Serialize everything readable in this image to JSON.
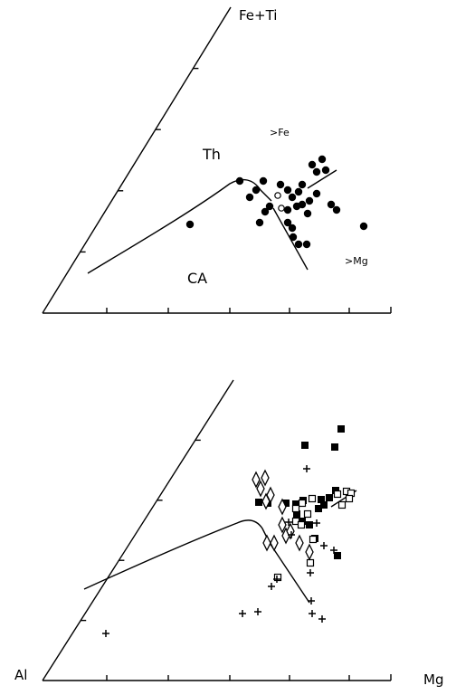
{
  "chart_data": [
    {
      "type": "scatter",
      "diagram": "Jensen cation ternary",
      "vertex_labels": {
        "apex": "Fe+Ti",
        "left": "Al",
        "right": "Mg"
      },
      "field_labels": {
        "tholeiitic": "Th",
        "calc_alkaline": "CA",
        "fe_trend": ">Fe",
        "mg_trend": ">Mg"
      },
      "series": [
        {
          "marker": "filled-circle",
          "points": [
            [
              210,
              248
            ],
            [
              265,
              200
            ],
            [
              276,
              218
            ],
            [
              283,
              210
            ],
            [
              291,
              200
            ],
            [
              298,
              228
            ],
            [
              293,
              234
            ],
            [
              287,
              246
            ],
            [
              310,
              204
            ],
            [
              318,
              210
            ],
            [
              318,
              232
            ],
            [
              323,
              218
            ],
            [
              328,
              228
            ],
            [
              330,
              212
            ],
            [
              334,
              226
            ],
            [
              342,
              222
            ],
            [
              350,
              214
            ],
            [
              350,
              190
            ],
            [
              356,
              176
            ],
            [
              360,
              188
            ],
            [
              345,
              182
            ],
            [
              334,
              204
            ],
            [
              324,
              262
            ],
            [
              330,
              270
            ],
            [
              339,
              270
            ],
            [
              318,
              246
            ],
            [
              323,
              252
            ],
            [
              340,
              236
            ],
            [
              366,
              226
            ],
            [
              372,
              232
            ],
            [
              402,
              250
            ]
          ]
        },
        {
          "marker": "open-circle",
          "points": [
            [
              307,
              216
            ],
            [
              311,
              230
            ]
          ]
        }
      ]
    },
    {
      "type": "scatter",
      "series": [
        {
          "marker": "filled-square",
          "points": [
            [
              377,
              474
            ],
            [
              337,
              492
            ],
            [
              370,
              494
            ],
            [
              286,
              555
            ],
            [
              296,
              556
            ],
            [
              316,
              556
            ],
            [
              335,
              553
            ],
            [
              355,
              552
            ],
            [
              364,
              550
            ],
            [
              371,
              542
            ],
            [
              358,
              558
            ],
            [
              328,
              568
            ],
            [
              334,
              576
            ],
            [
              342,
              580
            ],
            [
              352,
              562
            ],
            [
              348,
              595
            ],
            [
              373,
              614
            ],
            [
              327,
              557
            ]
          ]
        },
        {
          "marker": "open-square",
          "points": [
            [
              345,
              551
            ],
            [
              334,
              556
            ],
            [
              327,
              562
            ],
            [
              327,
              576
            ],
            [
              333,
              580
            ],
            [
              340,
              568
            ],
            [
              346,
              596
            ],
            [
              307,
              638
            ],
            [
              343,
              622
            ],
            [
              373,
              546
            ],
            [
              383,
              543
            ],
            [
              388,
              545
            ],
            [
              386,
              551
            ],
            [
              378,
              558
            ]
          ]
        },
        {
          "marker": "open-diamond",
          "points": [
            [
              283,
              530
            ],
            [
              293,
              528
            ],
            [
              288,
              540
            ],
            [
              299,
              547
            ],
            [
              294,
              554
            ],
            [
              312,
              580
            ],
            [
              316,
              592
            ],
            [
              295,
              600
            ],
            [
              303,
              600
            ],
            [
              342,
              610
            ],
            [
              331,
              600
            ],
            [
              321,
              587
            ],
            [
              312,
              560
            ]
          ]
        },
        {
          "marker": "plus",
          "points": [
            [
              339,
              518
            ],
            [
              319,
              577
            ],
            [
              322,
              591
            ],
            [
              350,
              578
            ],
            [
              358,
              603
            ],
            [
              369,
              608
            ],
            [
              343,
              633
            ],
            [
              300,
              648
            ],
            [
              306,
              640
            ],
            [
              268,
              678
            ],
            [
              285,
              676
            ],
            [
              344,
              664
            ],
            [
              345,
              678
            ],
            [
              356,
              684
            ],
            [
              117,
              700
            ]
          ]
        }
      ]
    }
  ]
}
